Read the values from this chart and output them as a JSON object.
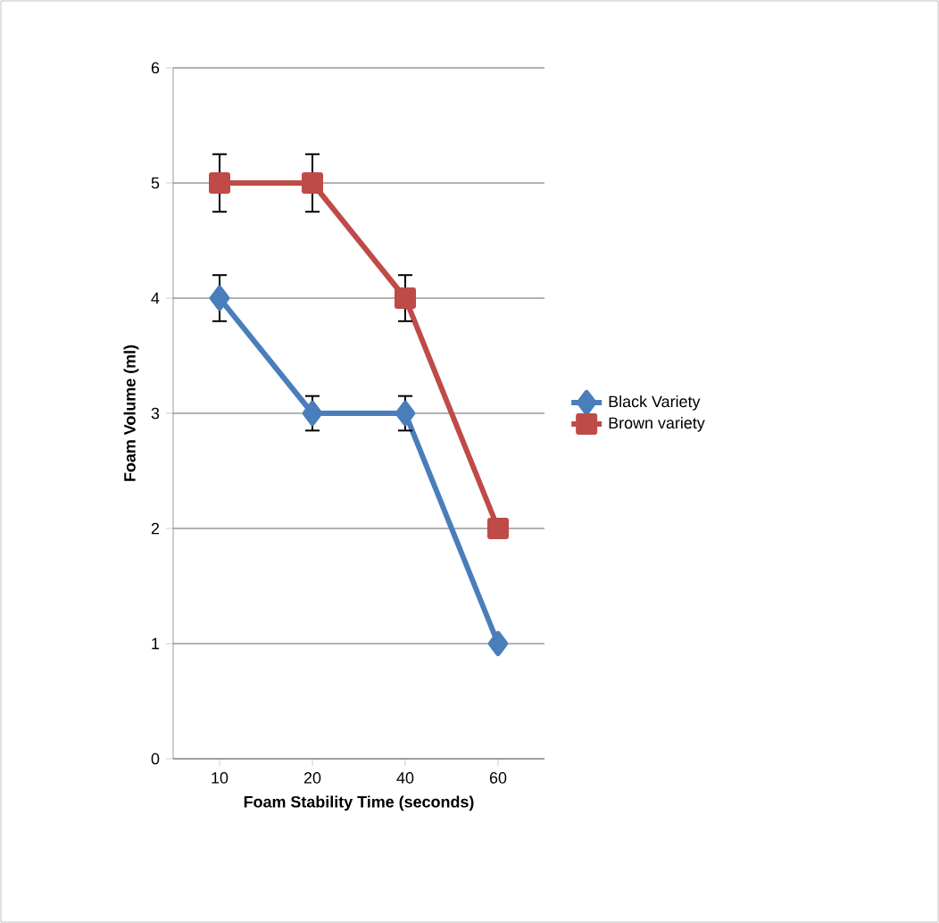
{
  "chart_data": {
    "type": "line",
    "xlabel": "Foam Stability Time (seconds)",
    "ylabel": "Foam Volume (ml)",
    "categories": [
      "10",
      "20",
      "40",
      "60"
    ],
    "series": [
      {
        "name": "Black Variety",
        "color": "#4a7ebb",
        "values": [
          4,
          3,
          3,
          1
        ],
        "errors": [
          0.2,
          0.15,
          0.15,
          null
        ],
        "marker": "diamond"
      },
      {
        "name": "Brown variety",
        "color": "#be4b48",
        "values": [
          5,
          5,
          4,
          2
        ],
        "errors": [
          0.25,
          0.25,
          0.2,
          null
        ],
        "marker": "square"
      }
    ],
    "ylim": [
      0,
      6
    ],
    "yticks": [
      0,
      1,
      2,
      3,
      4,
      5,
      6
    ],
    "grid": "y",
    "legend": "right",
    "line_style": "solid"
  }
}
